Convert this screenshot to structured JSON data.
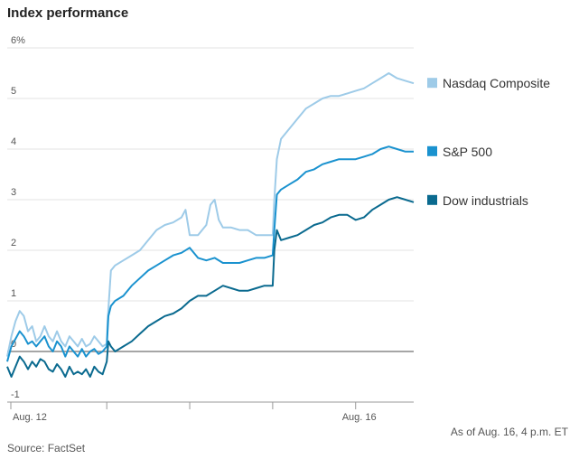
{
  "chart_data": {
    "type": "line",
    "title": "Index performance",
    "ylabel": "",
    "xlabel": "",
    "ylim": [
      -1,
      6
    ],
    "yticks": [
      -1,
      0,
      1,
      2,
      3,
      4,
      5,
      6
    ],
    "ytick_labels": [
      "-1",
      "0",
      "1",
      "2",
      "3",
      "4",
      "5",
      "6%"
    ],
    "xlim": [
      0,
      4.9
    ],
    "xticks": [
      0,
      1.2,
      2.2,
      3.2,
      4.2
    ],
    "xtick_labels": [
      "Aug. 12",
      "",
      "",
      "",
      "Aug. 16"
    ],
    "grid": true,
    "series": [
      {
        "name": "Nasdaq Composite",
        "color": "#9ecbe8",
        "x": [
          0,
          0.05,
          0.1,
          0.15,
          0.2,
          0.25,
          0.3,
          0.35,
          0.4,
          0.45,
          0.5,
          0.55,
          0.6,
          0.65,
          0.7,
          0.75,
          0.8,
          0.85,
          0.9,
          0.95,
          1.0,
          1.05,
          1.1,
          1.15,
          1.2,
          1.21,
          1.25,
          1.3,
          1.4,
          1.5,
          1.6,
          1.7,
          1.8,
          1.9,
          2.0,
          2.1,
          2.15,
          2.2,
          2.3,
          2.4,
          2.45,
          2.5,
          2.55,
          2.6,
          2.7,
          2.8,
          2.9,
          3.0,
          3.1,
          3.2,
          3.22,
          3.25,
          3.3,
          3.4,
          3.5,
          3.6,
          3.7,
          3.8,
          3.9,
          4.0,
          4.1,
          4.2,
          4.3,
          4.4,
          4.5,
          4.6,
          4.7,
          4.8,
          4.9
        ],
        "values": [
          -0.1,
          0.3,
          0.6,
          0.8,
          0.7,
          0.4,
          0.5,
          0.2,
          0.3,
          0.5,
          0.3,
          0.2,
          0.4,
          0.2,
          0.1,
          0.3,
          0.2,
          0.1,
          0.25,
          0.1,
          0.15,
          0.3,
          0.2,
          0.1,
          0.15,
          0.6,
          1.6,
          1.7,
          1.8,
          1.9,
          2.0,
          2.2,
          2.4,
          2.5,
          2.55,
          2.65,
          2.8,
          2.3,
          2.3,
          2.5,
          2.9,
          3.0,
          2.6,
          2.45,
          2.45,
          2.4,
          2.4,
          2.3,
          2.3,
          2.3,
          3.0,
          3.8,
          4.2,
          4.4,
          4.6,
          4.8,
          4.9,
          5.0,
          5.05,
          5.05,
          5.1,
          5.15,
          5.2,
          5.3,
          5.4,
          5.5,
          5.4,
          5.35,
          5.3
        ]
      },
      {
        "name": "S&P 500",
        "color": "#1a92cf",
        "x": [
          0,
          0.05,
          0.1,
          0.15,
          0.2,
          0.25,
          0.3,
          0.35,
          0.4,
          0.45,
          0.5,
          0.55,
          0.6,
          0.65,
          0.7,
          0.75,
          0.8,
          0.85,
          0.9,
          0.95,
          1.0,
          1.05,
          1.1,
          1.15,
          1.2,
          1.22,
          1.25,
          1.3,
          1.4,
          1.5,
          1.6,
          1.7,
          1.8,
          1.9,
          2.0,
          2.1,
          2.2,
          2.3,
          2.4,
          2.5,
          2.6,
          2.7,
          2.8,
          2.9,
          3.0,
          3.1,
          3.2,
          3.22,
          3.25,
          3.3,
          3.4,
          3.5,
          3.6,
          3.7,
          3.8,
          3.9,
          4.0,
          4.1,
          4.2,
          4.3,
          4.4,
          4.5,
          4.6,
          4.7,
          4.8,
          4.9
        ],
        "values": [
          -0.2,
          0.1,
          0.25,
          0.4,
          0.3,
          0.15,
          0.2,
          0.1,
          0.2,
          0.3,
          0.1,
          0.0,
          0.2,
          0.1,
          -0.1,
          0.1,
          0.0,
          -0.1,
          0.05,
          -0.1,
          0.0,
          0.05,
          -0.05,
          0.0,
          0.1,
          0.7,
          0.9,
          1.0,
          1.1,
          1.3,
          1.45,
          1.6,
          1.7,
          1.8,
          1.9,
          1.95,
          2.05,
          1.85,
          1.8,
          1.85,
          1.75,
          1.75,
          1.75,
          1.8,
          1.85,
          1.85,
          1.9,
          2.4,
          3.1,
          3.2,
          3.3,
          3.4,
          3.55,
          3.6,
          3.7,
          3.75,
          3.8,
          3.8,
          3.8,
          3.85,
          3.9,
          4.0,
          4.05,
          4.0,
          3.95,
          3.95
        ]
      },
      {
        "name": "Dow industrials",
        "color": "#0a6a8f",
        "x": [
          0,
          0.05,
          0.1,
          0.15,
          0.2,
          0.25,
          0.3,
          0.35,
          0.4,
          0.45,
          0.5,
          0.55,
          0.6,
          0.65,
          0.7,
          0.75,
          0.8,
          0.85,
          0.9,
          0.95,
          1.0,
          1.05,
          1.1,
          1.15,
          1.2,
          1.22,
          1.25,
          1.3,
          1.4,
          1.5,
          1.6,
          1.7,
          1.8,
          1.9,
          2.0,
          2.1,
          2.2,
          2.3,
          2.4,
          2.5,
          2.6,
          2.7,
          2.8,
          2.9,
          3.0,
          3.1,
          3.2,
          3.22,
          3.25,
          3.3,
          3.4,
          3.5,
          3.6,
          3.7,
          3.8,
          3.9,
          4.0,
          4.1,
          4.2,
          4.3,
          4.4,
          4.5,
          4.6,
          4.7,
          4.8,
          4.9
        ],
        "values": [
          -0.3,
          -0.5,
          -0.3,
          -0.1,
          -0.2,
          -0.35,
          -0.2,
          -0.3,
          -0.15,
          -0.2,
          -0.35,
          -0.4,
          -0.25,
          -0.35,
          -0.5,
          -0.3,
          -0.45,
          -0.4,
          -0.45,
          -0.35,
          -0.5,
          -0.3,
          -0.4,
          -0.45,
          -0.2,
          0.2,
          0.1,
          0.0,
          0.1,
          0.2,
          0.35,
          0.5,
          0.6,
          0.7,
          0.75,
          0.85,
          1.0,
          1.1,
          1.1,
          1.2,
          1.3,
          1.25,
          1.2,
          1.2,
          1.25,
          1.3,
          1.3,
          2.0,
          2.4,
          2.2,
          2.25,
          2.3,
          2.4,
          2.5,
          2.55,
          2.65,
          2.7,
          2.7,
          2.6,
          2.65,
          2.8,
          2.9,
          3.0,
          3.05,
          3.0,
          2.95
        ]
      }
    ],
    "annotations": {
      "as_of": "As of Aug. 16, 4 p.m. ET",
      "source": "Source: FactSet"
    }
  }
}
